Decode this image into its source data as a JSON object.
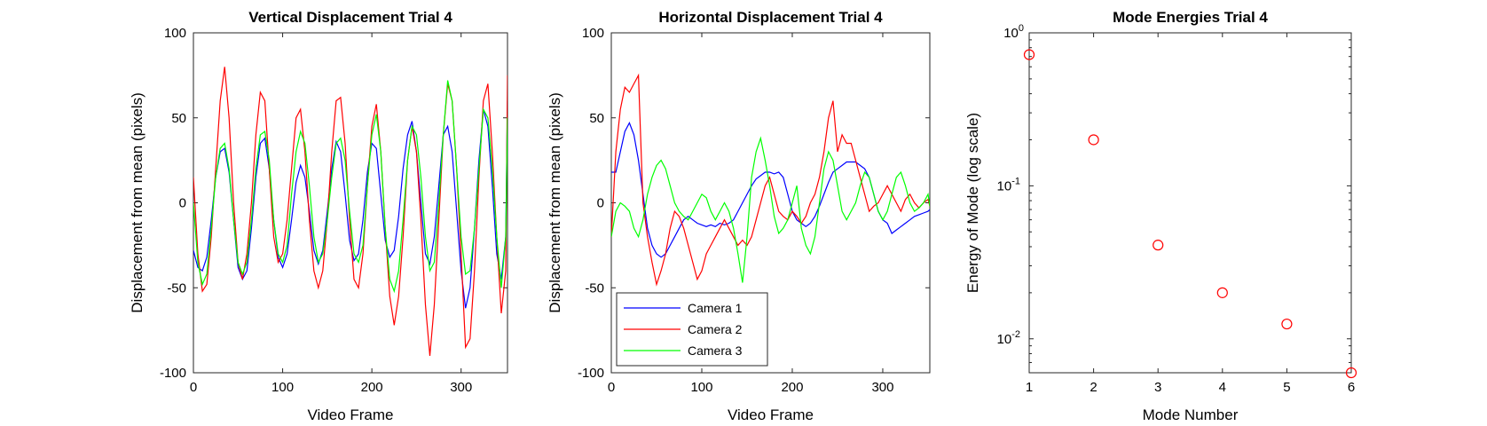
{
  "chart_data": [
    {
      "type": "line",
      "title": "Vertical Displacement Trial 4",
      "xlabel": "Video Frame",
      "ylabel": "Displacement from mean (pixels)",
      "xlim": [
        0,
        352
      ],
      "ylim": [
        -100,
        100
      ],
      "xticks": [
        0,
        100,
        200,
        300
      ],
      "yticks": [
        -100,
        -50,
        0,
        50,
        100
      ],
      "legend": null,
      "series": [
        {
          "name": "Camera 1",
          "color": "#0000ff",
          "x": [
            0,
            5,
            10,
            15,
            20,
            25,
            30,
            35,
            40,
            45,
            50,
            55,
            60,
            65,
            70,
            75,
            80,
            85,
            90,
            95,
            100,
            105,
            110,
            115,
            120,
            125,
            130,
            135,
            140,
            145,
            150,
            155,
            160,
            165,
            170,
            175,
            180,
            185,
            190,
            195,
            200,
            205,
            210,
            215,
            220,
            225,
            230,
            235,
            240,
            245,
            250,
            255,
            260,
            265,
            270,
            275,
            280,
            285,
            290,
            295,
            300,
            305,
            310,
            315,
            320,
            325,
            330,
            335,
            340,
            345,
            350,
            352
          ],
          "y": [
            -28,
            -38,
            -40,
            -32,
            -10,
            15,
            30,
            32,
            18,
            -10,
            -38,
            -45,
            -40,
            -15,
            15,
            35,
            38,
            20,
            -10,
            -32,
            -38,
            -30,
            -10,
            12,
            22,
            15,
            -5,
            -28,
            -36,
            -28,
            -5,
            20,
            36,
            30,
            5,
            -22,
            -34,
            -30,
            -10,
            18,
            35,
            32,
            5,
            -22,
            -32,
            -28,
            -8,
            20,
            40,
            48,
            30,
            0,
            -30,
            -36,
            -20,
            10,
            40,
            45,
            30,
            -5,
            -40,
            -62,
            -50,
            -15,
            25,
            55,
            45,
            10,
            -30,
            -45,
            -20,
            60
          ]
        },
        {
          "name": "Camera 2",
          "color": "#ff0000",
          "x": [
            0,
            5,
            10,
            15,
            20,
            25,
            30,
            35,
            40,
            45,
            50,
            55,
            60,
            65,
            70,
            75,
            80,
            85,
            90,
            95,
            100,
            105,
            110,
            115,
            120,
            125,
            130,
            135,
            140,
            145,
            150,
            155,
            160,
            165,
            170,
            175,
            180,
            185,
            190,
            195,
            200,
            205,
            210,
            215,
            220,
            225,
            230,
            235,
            240,
            245,
            250,
            255,
            260,
            265,
            270,
            275,
            280,
            285,
            290,
            295,
            300,
            305,
            310,
            315,
            320,
            325,
            330,
            335,
            340,
            345,
            350,
            352
          ],
          "y": [
            15,
            -30,
            -52,
            -48,
            -20,
            20,
            60,
            80,
            50,
            0,
            -35,
            -45,
            -30,
            0,
            40,
            65,
            60,
            20,
            -20,
            -35,
            -30,
            -10,
            20,
            50,
            55,
            30,
            -10,
            -40,
            -50,
            -40,
            -10,
            30,
            60,
            62,
            35,
            -10,
            -45,
            -50,
            -30,
            10,
            45,
            58,
            30,
            -15,
            -55,
            -72,
            -55,
            -20,
            25,
            45,
            30,
            -10,
            -60,
            -90,
            -60,
            -10,
            40,
            70,
            60,
            20,
            -30,
            -85,
            -80,
            -40,
            15,
            60,
            70,
            30,
            -20,
            -65,
            -40,
            75
          ]
        },
        {
          "name": "Camera 3",
          "color": "#00ff00",
          "x": [
            0,
            5,
            10,
            15,
            20,
            25,
            30,
            35,
            40,
            45,
            50,
            55,
            60,
            65,
            70,
            75,
            80,
            85,
            90,
            95,
            100,
            105,
            110,
            115,
            120,
            125,
            130,
            135,
            140,
            145,
            150,
            155,
            160,
            165,
            170,
            175,
            180,
            185,
            190,
            195,
            200,
            205,
            210,
            215,
            220,
            225,
            230,
            235,
            240,
            245,
            250,
            255,
            260,
            265,
            270,
            275,
            280,
            285,
            290,
            295,
            300,
            305,
            310,
            315,
            320,
            325,
            330,
            335,
            340,
            345,
            350,
            352
          ],
          "y": [
            0,
            -35,
            -48,
            -42,
            -15,
            15,
            32,
            35,
            20,
            -10,
            -35,
            -42,
            -35,
            -10,
            20,
            40,
            42,
            25,
            -10,
            -30,
            -35,
            -25,
            5,
            30,
            42,
            35,
            10,
            -20,
            -35,
            -30,
            -10,
            15,
            35,
            38,
            25,
            -5,
            -30,
            -35,
            -25,
            10,
            40,
            52,
            30,
            -15,
            -45,
            -52,
            -40,
            -10,
            25,
            45,
            40,
            15,
            -20,
            -40,
            -35,
            0,
            40,
            72,
            60,
            20,
            -20,
            -42,
            -40,
            -15,
            20,
            55,
            50,
            20,
            -20,
            -50,
            -20,
            50
          ]
        }
      ]
    },
    {
      "type": "line",
      "title": "Horizontal Displacement Trial 4",
      "xlabel": "Video Frame",
      "ylabel": "Displacement from mean (pixels)",
      "xlim": [
        0,
        352
      ],
      "ylim": [
        -100,
        100
      ],
      "xticks": [
        0,
        100,
        200,
        300
      ],
      "yticks": [
        -100,
        -50,
        0,
        50,
        100
      ],
      "legend": "bottom-left",
      "series": [
        {
          "name": "Camera 1",
          "color": "#0000ff",
          "x": [
            0,
            5,
            10,
            15,
            20,
            25,
            30,
            35,
            40,
            45,
            50,
            55,
            60,
            65,
            70,
            75,
            80,
            85,
            90,
            95,
            100,
            105,
            110,
            115,
            120,
            125,
            130,
            135,
            140,
            145,
            150,
            155,
            160,
            165,
            170,
            175,
            180,
            185,
            190,
            195,
            200,
            205,
            210,
            215,
            220,
            225,
            230,
            235,
            240,
            245,
            250,
            255,
            260,
            265,
            270,
            275,
            280,
            285,
            290,
            295,
            300,
            305,
            310,
            315,
            320,
            325,
            330,
            335,
            340,
            345,
            350,
            352
          ],
          "y": [
            18,
            18,
            30,
            42,
            47,
            40,
            25,
            5,
            -15,
            -25,
            -30,
            -32,
            -30,
            -25,
            -20,
            -15,
            -10,
            -8,
            -10,
            -12,
            -13,
            -14,
            -13,
            -14,
            -12,
            -13,
            -12,
            -10,
            -5,
            0,
            5,
            10,
            14,
            16,
            18,
            18,
            17,
            18,
            15,
            5,
            -5,
            -10,
            -12,
            -14,
            -12,
            -8,
            -2,
            5,
            12,
            18,
            20,
            22,
            24,
            24,
            24,
            22,
            20,
            15,
            5,
            -5,
            -10,
            -12,
            -18,
            -16,
            -14,
            -12,
            -10,
            -8,
            -7,
            -6,
            -5,
            -4
          ]
        },
        {
          "name": "Camera 2",
          "color": "#ff0000",
          "x": [
            0,
            5,
            10,
            15,
            20,
            25,
            30,
            35,
            40,
            45,
            50,
            55,
            60,
            65,
            70,
            75,
            80,
            85,
            90,
            95,
            100,
            105,
            110,
            115,
            120,
            125,
            130,
            135,
            140,
            145,
            150,
            155,
            160,
            165,
            170,
            175,
            180,
            185,
            190,
            195,
            200,
            205,
            210,
            215,
            220,
            225,
            230,
            235,
            240,
            245,
            250,
            255,
            260,
            265,
            270,
            275,
            280,
            285,
            290,
            295,
            300,
            305,
            310,
            315,
            320,
            325,
            330,
            335,
            340,
            345,
            350,
            352
          ],
          "y": [
            -20,
            30,
            55,
            68,
            65,
            70,
            75,
            0,
            -20,
            -35,
            -48,
            -40,
            -30,
            -15,
            -5,
            -8,
            -15,
            -25,
            -35,
            -45,
            -40,
            -30,
            -25,
            -20,
            -15,
            -10,
            -15,
            -20,
            -25,
            -22,
            -25,
            -20,
            -10,
            0,
            10,
            15,
            5,
            -5,
            -8,
            -10,
            -5,
            -8,
            -12,
            -8,
            0,
            5,
            15,
            30,
            50,
            60,
            30,
            40,
            35,
            35,
            25,
            15,
            5,
            -5,
            -2,
            0,
            5,
            10,
            5,
            0,
            -5,
            2,
            5,
            0,
            -3,
            0,
            2,
            -2
          ]
        },
        {
          "name": "Camera 3",
          "color": "#00ff00",
          "x": [
            0,
            5,
            10,
            15,
            20,
            25,
            30,
            35,
            40,
            45,
            50,
            55,
            60,
            65,
            70,
            75,
            80,
            85,
            90,
            95,
            100,
            105,
            110,
            115,
            120,
            125,
            130,
            135,
            140,
            145,
            150,
            155,
            160,
            165,
            170,
            175,
            180,
            185,
            190,
            195,
            200,
            205,
            210,
            215,
            220,
            225,
            230,
            235,
            240,
            245,
            250,
            255,
            260,
            265,
            270,
            275,
            280,
            285,
            290,
            295,
            300,
            305,
            310,
            315,
            320,
            325,
            330,
            335,
            340,
            345,
            350,
            352
          ],
          "y": [
            -20,
            -5,
            0,
            -2,
            -5,
            -15,
            -20,
            -10,
            5,
            15,
            22,
            25,
            20,
            10,
            0,
            -5,
            -8,
            -10,
            -5,
            0,
            5,
            3,
            -5,
            -10,
            -5,
            0,
            -5,
            -15,
            -30,
            -47,
            -20,
            15,
            30,
            38,
            25,
            10,
            -8,
            -18,
            -15,
            -10,
            0,
            10,
            -15,
            -25,
            -30,
            -20,
            0,
            20,
            30,
            25,
            10,
            -5,
            -10,
            -5,
            0,
            10,
            18,
            15,
            5,
            -5,
            -10,
            -5,
            5,
            15,
            18,
            10,
            0,
            -5,
            -3,
            0,
            5,
            -2
          ]
        }
      ]
    },
    {
      "type": "scatter",
      "title": "Mode Energies Trial 4",
      "xlabel": "Mode Number",
      "ylabel": "Energy of Mode (log scale)",
      "xlim": [
        1,
        6
      ],
      "ylim": [
        0.006,
        1
      ],
      "yscale": "log",
      "xticks": [
        1,
        2,
        3,
        4,
        5,
        6
      ],
      "yticks": [
        {
          "value": 1,
          "base": "10",
          "exp": "0"
        },
        {
          "value": 0.1,
          "base": "10",
          "exp": "-1"
        },
        {
          "value": 0.01,
          "base": "10",
          "exp": "-2"
        }
      ],
      "marker": "circle",
      "color": "#ff0000",
      "points": [
        {
          "x": 1,
          "y": 0.72
        },
        {
          "x": 2,
          "y": 0.2
        },
        {
          "x": 3,
          "y": 0.041
        },
        {
          "x": 4,
          "y": 0.02
        },
        {
          "x": 5,
          "y": 0.0125
        },
        {
          "x": 6,
          "y": 0.006
        }
      ]
    }
  ]
}
